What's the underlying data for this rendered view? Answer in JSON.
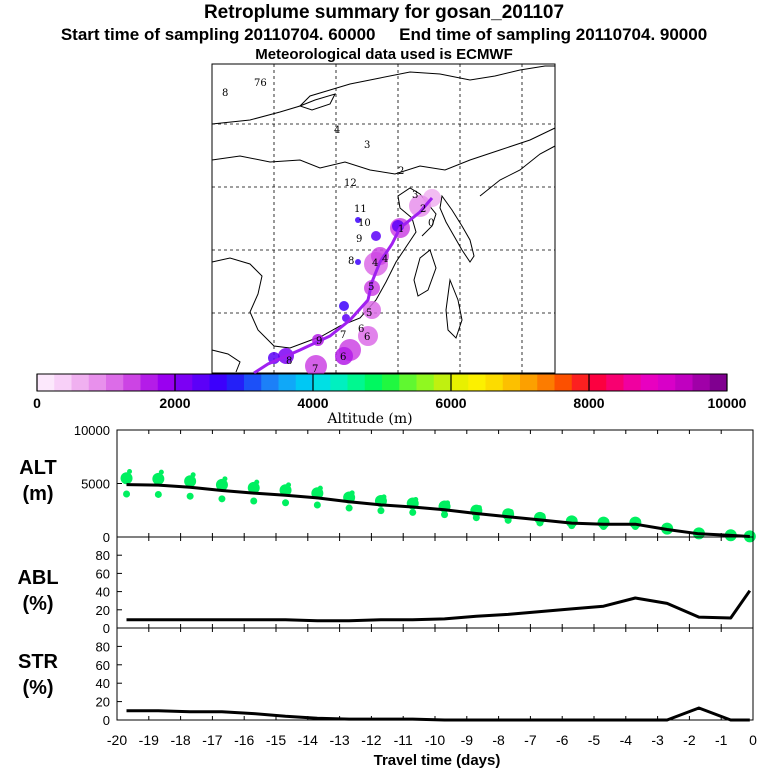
{
  "header": {
    "title": "Retroplume summary for gosan_201107",
    "start_label": "Start time of sampling 20110704. 60000",
    "end_label": "End time of sampling 20110704. 90000",
    "met_label": "Meteorological data used is ECMWF"
  },
  "map": {
    "outside_labels": [
      "8",
      "76"
    ],
    "region_labels": [
      "4",
      "3",
      "2",
      "12"
    ],
    "day_labels": [
      "11",
      "10",
      "9",
      "8",
      "4",
      "4",
      "5",
      "5",
      "6",
      "6",
      "6",
      "3",
      "2",
      "1",
      "0",
      "9",
      "8",
      "7",
      "7"
    ]
  },
  "colorbar": {
    "title": "Altitude (m)",
    "ticks": [
      "0",
      "2000",
      "4000",
      "6000",
      "8000",
      "10000"
    ],
    "colors": [
      "#fce8fc",
      "#f8d0f8",
      "#f0b0f0",
      "#e890ec",
      "#dc6ce8",
      "#cc44e4",
      "#b41ce8",
      "#9a00f0",
      "#7c00f4",
      "#5c00f8",
      "#3c00fc",
      "#2420f8",
      "#1c50f8",
      "#1c80f8",
      "#10a8f8",
      "#00c8f4",
      "#00e0e4",
      "#00f0c0",
      "#00f890",
      "#00f860",
      "#20f840",
      "#60f830",
      "#90f820",
      "#c0f010",
      "#e8f000",
      "#fcf000",
      "#fcdc00",
      "#fcc000",
      "#fca000",
      "#fc7c00",
      "#fc5000",
      "#fc2020",
      "#fc0040",
      "#f80070",
      "#f000a0",
      "#e800c0",
      "#d800c8",
      "#c000c0",
      "#a000a8",
      "#800090"
    ]
  },
  "panel_labels": {
    "alt": [
      "ALT",
      "(m)"
    ],
    "abl": [
      "ABL",
      "(%)"
    ],
    "str": [
      "STR",
      "(%)"
    ]
  },
  "chart_data": [
    {
      "type": "line",
      "title": "ALT",
      "ylabel": "ALT (m)",
      "xlabel": "Travel time (days)",
      "xlim": [
        -20,
        0
      ],
      "ylim": [
        0,
        10000
      ],
      "yticks": [
        "0",
        "5000",
        "10000"
      ],
      "xticks": [
        "-20",
        "-19",
        "-18",
        "-17",
        "-16",
        "-15",
        "-14",
        "-13",
        "-12",
        "-11",
        "-10",
        "-9",
        "-8",
        "-7",
        "-6",
        "-5",
        "-4",
        "-3",
        "-2",
        "-1",
        "0"
      ],
      "x": [
        -19.7,
        -18.7,
        -17.7,
        -16.7,
        -15.7,
        -14.7,
        -13.7,
        -12.7,
        -11.7,
        -10.7,
        -9.7,
        -8.7,
        -7.7,
        -6.7,
        -5.7,
        -4.7,
        -3.7,
        -2.7,
        -1.7,
        -0.7,
        -0.1
      ],
      "series": [
        {
          "name": "mean altitude",
          "values": [
            4900,
            4850,
            4650,
            4350,
            4100,
            3900,
            3650,
            3300,
            3000,
            2800,
            2550,
            2200,
            1900,
            1600,
            1300,
            1200,
            1200,
            700,
            300,
            150,
            50
          ]
        }
      ]
    },
    {
      "type": "line",
      "title": "ABL",
      "ylabel": "ABL (%)",
      "xlim": [
        -20,
        0
      ],
      "ylim": [
        0,
        100
      ],
      "yticks": [
        "0",
        "20",
        "40",
        "60",
        "80"
      ],
      "x": [
        -19.7,
        -18.7,
        -17.7,
        -16.7,
        -15.7,
        -14.7,
        -13.7,
        -12.7,
        -11.7,
        -10.7,
        -9.7,
        -8.7,
        -7.7,
        -6.7,
        -5.7,
        -4.7,
        -3.7,
        -2.7,
        -1.7,
        -0.7,
        -0.1
      ],
      "series": [
        {
          "name": "ABL fraction",
          "values": [
            9,
            9,
            9,
            9,
            9,
            9,
            8,
            8,
            9,
            9,
            10,
            13,
            15,
            18,
            21,
            24,
            33,
            27,
            12,
            11,
            41
          ]
        }
      ]
    },
    {
      "type": "line",
      "title": "STR",
      "ylabel": "STR (%)",
      "xlim": [
        -20,
        0
      ],
      "ylim": [
        0,
        100
      ],
      "yticks": [
        "0",
        "20",
        "40",
        "60",
        "80"
      ],
      "x": [
        -19.7,
        -18.7,
        -17.7,
        -16.7,
        -15.7,
        -14.7,
        -13.7,
        -12.7,
        -11.7,
        -10.7,
        -9.7,
        -8.7,
        -7.7,
        -6.7,
        -5.7,
        -4.7,
        -3.7,
        -2.7,
        -1.7,
        -0.7,
        -0.1
      ],
      "series": [
        {
          "name": "stratospheric fraction",
          "values": [
            10,
            10,
            9,
            9,
            7,
            4,
            2,
            1,
            1,
            1,
            0,
            0,
            0,
            0,
            0,
            0,
            0,
            0,
            13,
            0,
            0
          ]
        }
      ]
    }
  ]
}
